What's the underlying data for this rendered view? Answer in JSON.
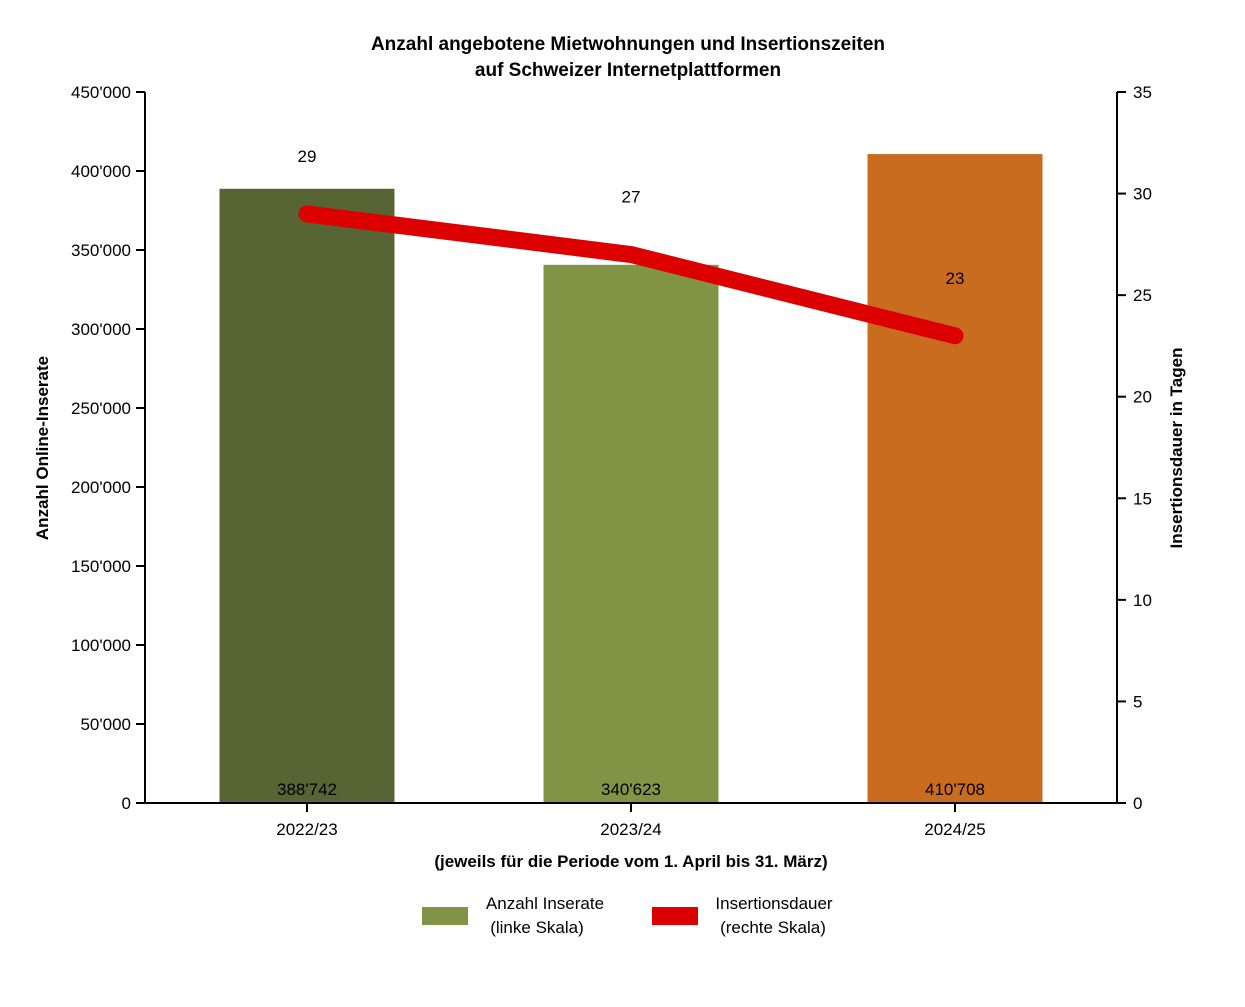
{
  "chart_data": {
    "type": "bar",
    "title_lines": [
      "Anzahl angebotene Mietwohnungen und Insertionszeiten",
      "auf Schweizer Internetplattformen"
    ],
    "xlabel": "(jeweils für die Periode vom 1. April bis 31. März)",
    "ylabel": "Anzahl Online-Inserate",
    "y2label": "Insertionsdauer in Tagen",
    "categories": [
      "2022/23",
      "2023/24",
      "2024/25"
    ],
    "ylim": [
      0,
      450000
    ],
    "yticks": [
      "0",
      "50'000",
      "100'000",
      "150'000",
      "200'000",
      "250'000",
      "300'000",
      "350'000",
      "400'000",
      "450'000"
    ],
    "y2lim": [
      0,
      35
    ],
    "y2ticks": [
      "0",
      "5",
      "10",
      "15",
      "20",
      "25",
      "30",
      "35"
    ],
    "series": [
      {
        "name": "Anzahl Inserate",
        "type": "bar",
        "axis": "left",
        "values": [
          388742,
          340623,
          410708
        ],
        "labels": [
          "388'742",
          "340'623",
          "410'708"
        ],
        "colors": [
          "#576433",
          "#819445",
          "#c96c1f"
        ]
      },
      {
        "name": "Insertionsdauer",
        "type": "line",
        "axis": "right",
        "values": [
          29,
          27,
          23
        ],
        "labels": [
          "29",
          "27",
          "23"
        ],
        "color": "#dd0000"
      }
    ],
    "legend": {
      "position": "bottom",
      "items": [
        {
          "line1": "Anzahl Inserate",
          "line2": "(linke Skala)",
          "color": "#819445",
          "kind": "bar"
        },
        {
          "line1": "Insertionsdauer",
          "line2": "(rechte Skala)",
          "color": "#dd0000",
          "kind": "line"
        }
      ]
    },
    "grid": false
  }
}
